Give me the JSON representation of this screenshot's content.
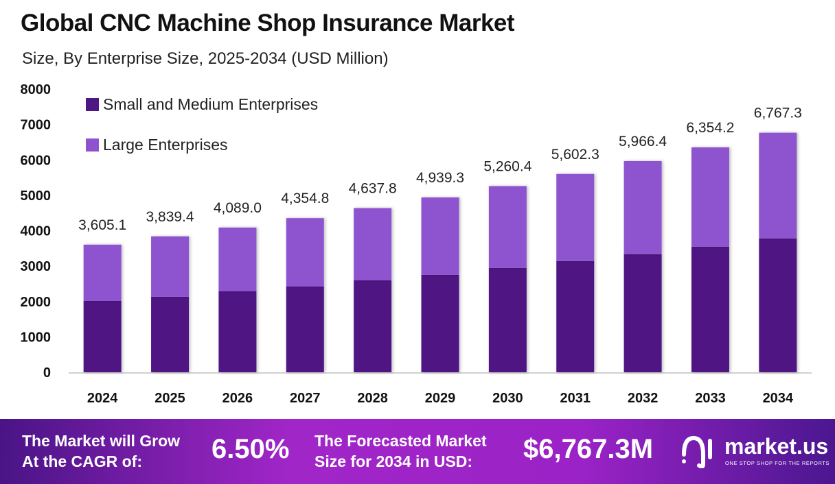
{
  "title": "Global CNC Machine Shop Insurance Market",
  "subtitle": "Size, By Enterprise Size, 2025-2034 (USD Million)",
  "chart_data": {
    "type": "bar",
    "stacked": true,
    "categories": [
      "2024",
      "2025",
      "2026",
      "2027",
      "2028",
      "2029",
      "2030",
      "2031",
      "2032",
      "2033",
      "2034"
    ],
    "series": [
      {
        "name": "Small and Medium Enterprises",
        "color": "#4f1783",
        "values": [
          2015,
          2132,
          2287,
          2422,
          2597,
          2752,
          2946,
          3140,
          3333,
          3547,
          3779
        ]
      },
      {
        "name": "Large Enterprises",
        "color": "#8e52cf",
        "values": [
          1590.1,
          1707.4,
          1802.0,
          1932.8,
          2040.8,
          2187.3,
          2314.4,
          2462.3,
          2633.4,
          2807.2,
          2988.3
        ]
      }
    ],
    "totals": [
      3605.1,
      3839.4,
      4089.0,
      4354.8,
      4637.8,
      4939.3,
      5260.4,
      5602.3,
      5966.4,
      6354.2,
      6767.3
    ],
    "total_labels": [
      "3,605.1",
      "3,839.4",
      "4,089.0",
      "4,354.8",
      "4,637.8",
      "4,939.3",
      "5,260.4",
      "5,602.3",
      "5,966.4",
      "6,354.2",
      "6,767.3"
    ],
    "yticks": [
      "0",
      "1000",
      "2000",
      "3000",
      "4000",
      "5000",
      "6000",
      "7000",
      "8000"
    ],
    "ylim": [
      0,
      8000
    ],
    "grid": false,
    "legend_position": "top-left"
  },
  "footer": {
    "cagr_text_line1": "The Market will Grow",
    "cagr_text_line2": "At the CAGR of:",
    "cagr_value": "6.50%",
    "forecast_text_line1": "The Forecasted Market",
    "forecast_text_line2": "Size for 2034 in USD:",
    "forecast_value": "$6,767.3M",
    "brand": "market.us",
    "tagline": "ONE STOP SHOP FOR THE REPORTS"
  }
}
